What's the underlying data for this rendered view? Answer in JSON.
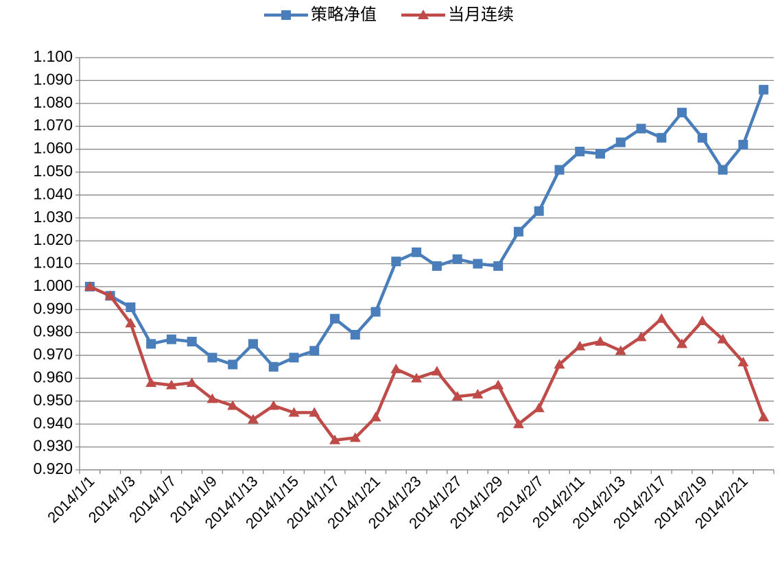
{
  "chart_data": {
    "type": "line",
    "categories": [
      "2014/1/1",
      null,
      "2014/1/3",
      null,
      "2014/1/7",
      null,
      "2014/1/9",
      null,
      "2014/1/13",
      null,
      "2014/1/15",
      null,
      "2014/1/17",
      null,
      "2014/1/21",
      null,
      "2014/1/23",
      null,
      "2014/1/27",
      null,
      "2014/1/29",
      null,
      "2014/2/7",
      null,
      "2014/2/11",
      null,
      "2014/2/13",
      null,
      "2014/2/17",
      null,
      "2014/2/19",
      null,
      "2014/2/21",
      null
    ],
    "series": [
      {
        "name": "策略净值",
        "color": "#4a7ebb",
        "marker": "square",
        "values": [
          1.0,
          0.996,
          0.991,
          0.975,
          0.977,
          0.976,
          0.969,
          0.966,
          0.975,
          0.965,
          0.969,
          0.972,
          0.986,
          0.979,
          0.989,
          1.011,
          1.015,
          1.009,
          1.012,
          1.01,
          1.009,
          1.024,
          1.033,
          1.051,
          1.059,
          1.058,
          1.063,
          1.069,
          1.065,
          1.076,
          1.065,
          1.051,
          1.062,
          1.086
        ]
      },
      {
        "name": "当月连续",
        "color": "#be4b48",
        "marker": "triangle",
        "values": [
          1.0,
          0.996,
          0.984,
          0.958,
          0.957,
          0.958,
          0.951,
          0.948,
          0.942,
          0.948,
          0.945,
          0.945,
          0.933,
          0.934,
          0.943,
          0.964,
          0.96,
          0.963,
          0.952,
          0.953,
          0.957,
          0.94,
          0.947,
          0.966,
          0.974,
          0.976,
          0.972,
          0.978,
          0.986,
          0.975,
          0.985,
          0.977,
          0.967,
          0.943
        ]
      }
    ],
    "ylim": [
      0.92,
      1.1
    ],
    "yticks": [
      {
        "value": 0.92,
        "label": "0.920"
      },
      {
        "value": 0.93,
        "label": "0.930"
      },
      {
        "value": 0.94,
        "label": "0.940"
      },
      {
        "value": 0.95,
        "label": "0.950"
      },
      {
        "value": 0.96,
        "label": "0.960"
      },
      {
        "value": 0.97,
        "label": "0.970"
      },
      {
        "value": 0.98,
        "label": "0.980"
      },
      {
        "value": 0.99,
        "label": "0.990"
      },
      {
        "value": 1.0,
        "label": "1.000"
      },
      {
        "value": 1.01,
        "label": "1.010"
      },
      {
        "value": 1.02,
        "label": "1.020"
      },
      {
        "value": 1.03,
        "label": "1.030"
      },
      {
        "value": 1.04,
        "label": "1.040"
      },
      {
        "value": 1.05,
        "label": "1.050"
      },
      {
        "value": 1.06,
        "label": "1.060"
      },
      {
        "value": 1.07,
        "label": "1.070"
      },
      {
        "value": 1.08,
        "label": "1.080"
      },
      {
        "value": 1.09,
        "label": "1.090"
      },
      {
        "value": 1.1,
        "label": "1.100"
      }
    ],
    "grid": true,
    "legend": "top"
  }
}
